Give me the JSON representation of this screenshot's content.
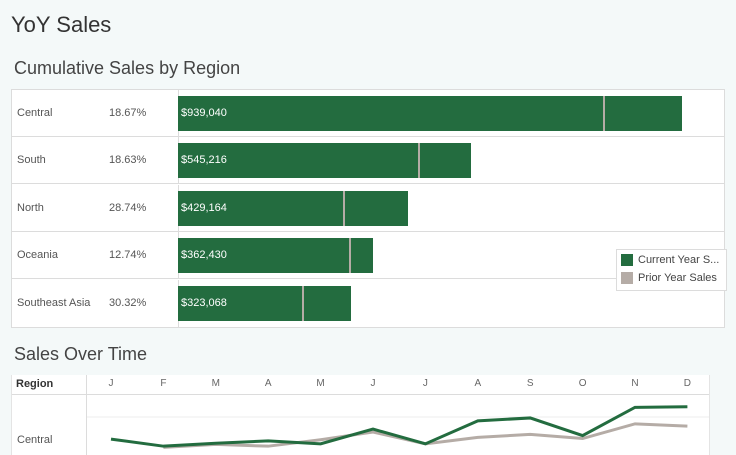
{
  "page": {
    "title": "YoY Sales"
  },
  "chart_data": [
    {
      "type": "bar",
      "title": "Cumulative Sales by Region",
      "categories": [
        "Central",
        "South",
        "North",
        "Oceania",
        "Southeast Asia"
      ],
      "percentages": [
        "18.67%",
        "18.63%",
        "28.74%",
        "12.74%",
        "30.32%"
      ],
      "series": [
        {
          "name": "Current Year Sales",
          "values": [
            939040,
            545216,
            429164,
            362430,
            323068
          ]
        },
        {
          "name": "Prior Year Sales",
          "values": [
            791000,
            447000,
            308000,
            318000,
            230000
          ]
        }
      ],
      "value_labels": [
        "$939,040",
        "$545,216",
        "$429,164",
        "$362,430",
        "$323,068"
      ],
      "legend": {
        "items": [
          "Current Year S...",
          "Prior Year Sales"
        ],
        "position": "right"
      },
      "xlim": [
        0,
        1000000
      ],
      "colors": {
        "current": "#236c3f",
        "prior": "#b5aca6"
      }
    },
    {
      "type": "line",
      "title": "Sales Over Time",
      "row_header": "Region",
      "rows": [
        "Central"
      ],
      "x": [
        "J",
        "F",
        "M",
        "A",
        "M",
        "J",
        "J",
        "A",
        "S",
        "O",
        "N",
        "D"
      ],
      "series": [
        {
          "name": "Current Year Sales",
          "values": [
            85000,
            73000,
            78000,
            82000,
            77000,
            102000,
            77000,
            116000,
            121000,
            91000,
            139000,
            140000
          ]
        },
        {
          "name": "Prior Year Sales",
          "values": [
            null,
            71000,
            76000,
            73000,
            84000,
            97000,
            77000,
            88000,
            93000,
            86000,
            111000,
            107000
          ]
        }
      ],
      "ylim": [
        58000,
        160000
      ],
      "colors": {
        "current": "#236c3f",
        "prior": "#b5aca6"
      }
    }
  ]
}
